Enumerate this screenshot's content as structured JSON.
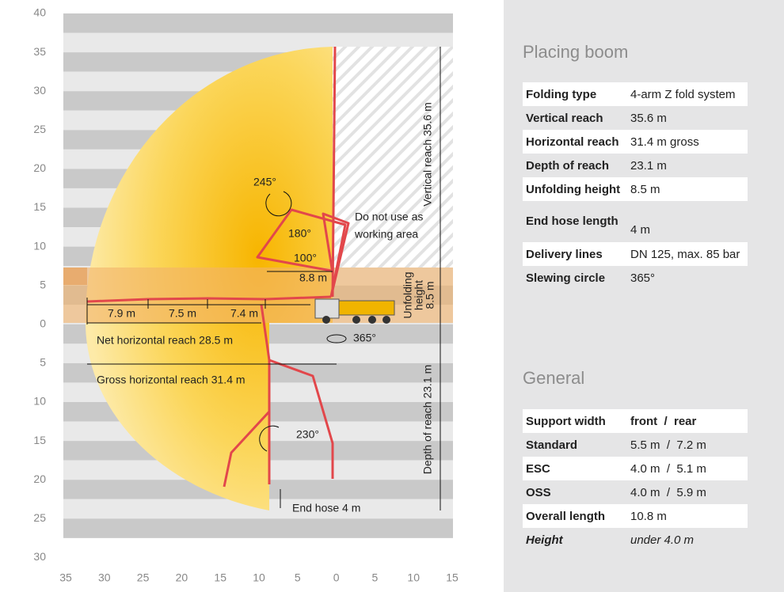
{
  "diagram": {
    "y_labels": [
      "40",
      "35",
      "30",
      "25",
      "20",
      "15",
      "10",
      "5",
      "0",
      "5",
      "10",
      "15",
      "20",
      "25",
      "30"
    ],
    "x_labels": [
      "35",
      "30",
      "25",
      "20",
      "15",
      "10",
      "5",
      "0",
      "5",
      "10",
      "15"
    ],
    "annotations": {
      "angle_245": "245°",
      "angle_180": "180°",
      "angle_100": "100°",
      "reach_8_8": "8.8 m",
      "no_work": [
        "Do not use as",
        "working area"
      ],
      "seg_1": "7.9 m",
      "seg_2": "7.5 m",
      "seg_3": "7.4 m",
      "net_reach": "Net horizontal reach 28.5 m",
      "slewing": "365°",
      "gross_reach": "Gross horizontal reach 31.4 m",
      "angle_230": "230°",
      "end_hose": "End hose 4 m",
      "vertical_reach": "Vertical reach 35.6 m",
      "unfolding": [
        "Unfolding",
        "height",
        "8.5 m"
      ],
      "depth_reach": "Depth of reach 23.1 m"
    }
  },
  "placing_boom": {
    "title": "Placing boom",
    "rows": [
      [
        "Folding type",
        "4-arm Z fold system"
      ],
      [
        "Vertical reach",
        "35.6 m"
      ],
      [
        "Horizontal reach",
        "31.4 m gross"
      ],
      [
        "Depth of reach",
        "23.1 m"
      ],
      [
        "Unfolding height",
        "8.5 m"
      ],
      [
        "End hose length",
        "4 m"
      ],
      [
        "Delivery lines",
        "DN 125, max. 85 bar"
      ],
      [
        "Slewing circle",
        "365°"
      ]
    ]
  },
  "general": {
    "title": "General",
    "header": [
      "Support width",
      "front  /  rear"
    ],
    "rows": [
      [
        "Standard",
        "5.5 m  /  7.2 m"
      ],
      [
        "ESC",
        "4.0 m  /  5.1 m"
      ],
      [
        "OSS",
        "4.0 m  /  5.9 m"
      ],
      [
        "Overall length",
        "10.8 m"
      ],
      [
        "Height",
        "under 4.0 m"
      ]
    ]
  }
}
